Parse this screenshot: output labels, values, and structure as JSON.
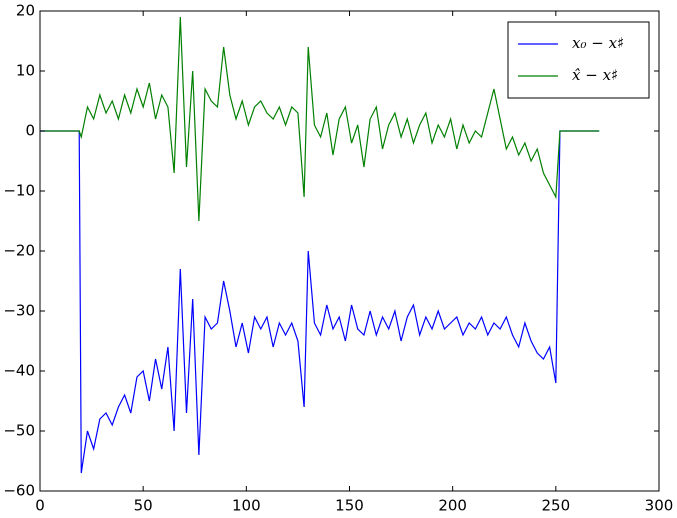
{
  "chart_data": {
    "type": "line",
    "x": [
      0,
      19,
      20,
      23,
      26,
      29,
      32,
      35,
      38,
      41,
      44,
      47,
      50,
      53,
      56,
      59,
      62,
      65,
      68,
      71,
      74,
      77,
      80,
      83,
      86,
      89,
      92,
      95,
      98,
      101,
      104,
      107,
      110,
      113,
      116,
      119,
      122,
      125,
      128,
      130,
      133,
      136,
      139,
      142,
      145,
      148,
      151,
      154,
      157,
      160,
      163,
      166,
      169,
      172,
      175,
      178,
      181,
      184,
      187,
      190,
      193,
      196,
      199,
      202,
      205,
      208,
      211,
      214,
      217,
      220,
      223,
      226,
      229,
      232,
      235,
      238,
      241,
      244,
      247,
      250,
      252,
      271
    ],
    "series": [
      {
        "name": "x₀ − x♯",
        "color": "#0000ff",
        "values": [
          0,
          0,
          -57,
          -50,
          -53,
          -48,
          -47,
          -49,
          -46,
          -44,
          -47,
          -41,
          -40,
          -45,
          -38,
          -43,
          -36,
          -50,
          -23,
          -47,
          -28,
          -54,
          -31,
          -33,
          -32,
          -25,
          -30,
          -36,
          -32,
          -37,
          -31,
          -33,
          -31,
          -36,
          -32,
          -34,
          -32,
          -35,
          -46,
          -20,
          -32,
          -34,
          -29,
          -33,
          -31,
          -35,
          -29,
          -33,
          -34,
          -30,
          -34,
          -31,
          -33,
          -30,
          -35,
          -31,
          -29,
          -34,
          -31,
          -33,
          -30,
          -33,
          -32,
          -31,
          -34,
          -32,
          -33,
          -31,
          -34,
          -32,
          -33,
          -31,
          -34,
          -36,
          -32,
          -35,
          -37,
          -38,
          -36,
          -42,
          0,
          0
        ]
      },
      {
        "name": "x̂ − x♯",
        "color": "#008000",
        "values": [
          0,
          0,
          -1,
          4,
          2,
          6,
          3,
          5,
          2,
          6,
          3,
          7,
          4,
          8,
          2,
          6,
          4,
          -7,
          19,
          -6,
          10,
          -15,
          7,
          5,
          4,
          14,
          6,
          2,
          5,
          1,
          4,
          5,
          3,
          2,
          4,
          1,
          4,
          3,
          -11,
          14,
          1,
          -1,
          3,
          -4,
          2,
          4,
          -2,
          1,
          -6,
          2,
          4,
          -3,
          1,
          3,
          -1,
          2,
          -2,
          1,
          3,
          -2,
          1,
          -1,
          2,
          -3,
          1,
          -2,
          0,
          -1,
          3,
          7,
          2,
          -3,
          -1,
          -4,
          -2,
          -5,
          -3,
          -7,
          -9,
          -11,
          0,
          0
        ]
      }
    ],
    "xlim": [
      0,
      300
    ],
    "xticks": [
      0,
      50,
      100,
      150,
      200,
      250,
      300
    ],
    "ylim": [
      -60,
      20
    ],
    "yticks": [
      {
        "value": -60,
        "label": "−60"
      },
      {
        "value": -50,
        "label": "−50"
      },
      {
        "value": -40,
        "label": "−40"
      },
      {
        "value": -30,
        "label": "−30"
      },
      {
        "value": -20,
        "label": "−20"
      },
      {
        "value": -10,
        "label": "−10"
      },
      0,
      10,
      20
    ],
    "legend": "upper right"
  }
}
